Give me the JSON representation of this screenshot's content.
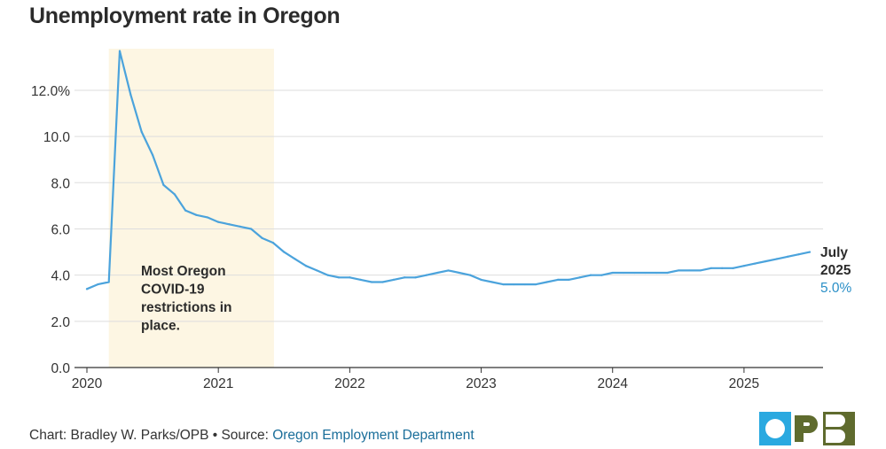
{
  "chart_data": {
    "type": "line",
    "title": "Unemployment rate in Oregon",
    "ylim": [
      0,
      13.8
    ],
    "yticks": [
      0,
      2,
      4,
      6,
      8,
      10,
      12
    ],
    "ytick_labels": [
      "0.0",
      "2.0",
      "4.0",
      "6.0",
      "8.0",
      "10.0",
      "12.0%"
    ],
    "xlim": [
      "2020-01",
      "2025-07"
    ],
    "xticks": [
      "2020-01",
      "2021-01",
      "2022-01",
      "2023-01",
      "2024-01",
      "2025-01"
    ],
    "xtick_labels": [
      "2020",
      "2021",
      "2022",
      "2023",
      "2024",
      "2025"
    ],
    "grid": "horizontal",
    "shaded_region": {
      "start": "2020-03",
      "end": "2021-06",
      "label": "Most Oregon COVID-19 restrictions in place.",
      "color": "#fdf6e3"
    },
    "line_color": "#4ba3dc",
    "series": [
      {
        "x": [
          "2020-01",
          "2020-02",
          "2020-03",
          "2020-04",
          "2020-05",
          "2020-06",
          "2020-07",
          "2020-08",
          "2020-09",
          "2020-10",
          "2020-11",
          "2020-12",
          "2021-01",
          "2021-02",
          "2021-03",
          "2021-04",
          "2021-05",
          "2021-06",
          "2021-07",
          "2021-08",
          "2021-09",
          "2021-10",
          "2021-11",
          "2021-12",
          "2022-01",
          "2022-02",
          "2022-03",
          "2022-04",
          "2022-05",
          "2022-06",
          "2022-07",
          "2022-08",
          "2022-09",
          "2022-10",
          "2022-11",
          "2022-12",
          "2023-01",
          "2023-02",
          "2023-03",
          "2023-04",
          "2023-05",
          "2023-06",
          "2023-07",
          "2023-08",
          "2023-09",
          "2023-10",
          "2023-11",
          "2023-12",
          "2024-01",
          "2024-02",
          "2024-03",
          "2024-04",
          "2024-05",
          "2024-06",
          "2024-07",
          "2024-08",
          "2024-09",
          "2024-10",
          "2024-11",
          "2024-12",
          "2025-01",
          "2025-02",
          "2025-03",
          "2025-04",
          "2025-05",
          "2025-06",
          "2025-07"
        ],
        "values": [
          3.4,
          3.6,
          3.7,
          13.7,
          11.8,
          10.2,
          9.2,
          7.9,
          7.5,
          6.8,
          6.6,
          6.5,
          6.3,
          6.2,
          6.1,
          6.0,
          5.6,
          5.4,
          5.0,
          4.7,
          4.4,
          4.2,
          4.0,
          3.9,
          3.9,
          3.8,
          3.7,
          3.7,
          3.8,
          3.9,
          3.9,
          4.0,
          4.1,
          4.2,
          4.1,
          4.0,
          3.8,
          3.7,
          3.6,
          3.6,
          3.6,
          3.6,
          3.7,
          3.8,
          3.8,
          3.9,
          4.0,
          4.0,
          4.1,
          4.1,
          4.1,
          4.1,
          4.1,
          4.1,
          4.2,
          4.2,
          4.2,
          4.3,
          4.3,
          4.3,
          4.4,
          4.5,
          4.6,
          4.7,
          4.8,
          4.9,
          5.0
        ]
      }
    ],
    "annotation": {
      "line1": "July",
      "line2": "2025",
      "value": "5.0%",
      "value_color": "#2a8fc7"
    }
  },
  "footer": {
    "prefix": "Chart: Bradley W. Parks/OPB • Source: ",
    "source": "Oregon Employment Department"
  },
  "logo": {
    "text": "OPB",
    "colors": [
      "#2aa9e0",
      "#ffffff",
      "#5f6b2e"
    ]
  }
}
